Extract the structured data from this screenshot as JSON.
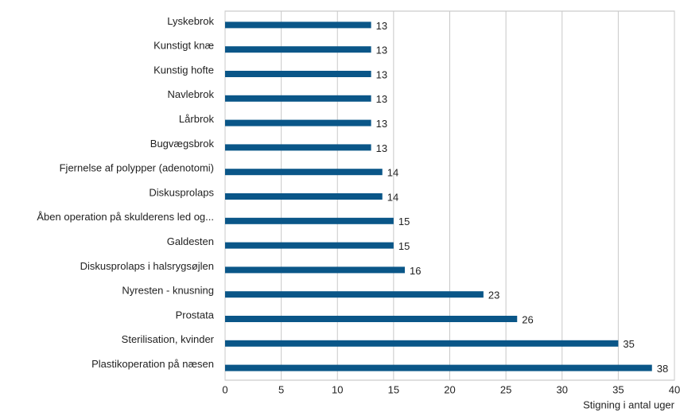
{
  "chart_data": {
    "type": "barh",
    "categories": [
      "Lyskebrok",
      "Kunstigt knæ",
      "Kunstig hofte",
      "Navlebrok",
      "Lårbrok",
      "Bugvægsbrok",
      "Fjernelse af polypper (adenotomi)",
      "Diskusprolaps",
      "Åben operation på skulderens led og...",
      "Galdesten",
      "Diskusprolaps i halsrygsøjlen",
      "Nyresten - knusning",
      "Prostata",
      "Sterilisation, kvinder",
      "Plastikoperation på næsen"
    ],
    "values": [
      13,
      13,
      13,
      13,
      13,
      13,
      14,
      14,
      15,
      15,
      16,
      23,
      26,
      35,
      38
    ],
    "color": "#0a5688",
    "xlabel": "Stigning i antal uger",
    "xlim": [
      0,
      40
    ],
    "xticks": [
      0,
      5,
      10,
      15,
      20,
      25,
      30,
      35,
      40
    ],
    "grid": true
  }
}
